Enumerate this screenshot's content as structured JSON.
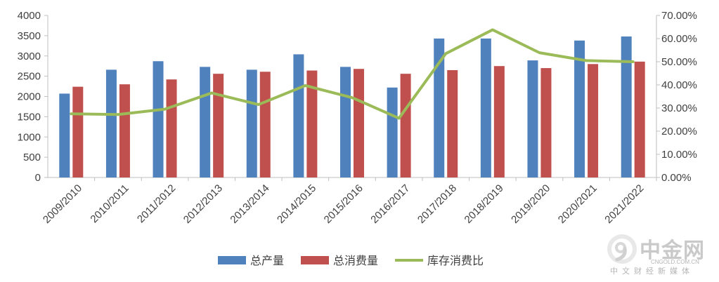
{
  "chart_data": {
    "type": "bar",
    "categories": [
      "2009/2010",
      "2010/2011",
      "2011/2012",
      "2012/2013",
      "2013/2014",
      "2014/2015",
      "2015/2016",
      "2016/2017",
      "2017/2018",
      "2018/2019",
      "2019/2020",
      "2020/2021",
      "2021/2022"
    ],
    "series": [
      {
        "name": "总产量",
        "type": "bar",
        "axis": "left",
        "color": "#4f81bd",
        "values": [
          2070,
          2660,
          2870,
          2730,
          2660,
          3040,
          2730,
          2220,
          3430,
          3430,
          2890,
          3380,
          3480
        ]
      },
      {
        "name": "总消费量",
        "type": "bar",
        "axis": "left",
        "color": "#c0504d",
        "values": [
          2240,
          2300,
          2420,
          2560,
          2610,
          2640,
          2680,
          2560,
          2650,
          2750,
          2700,
          2800,
          2860
        ]
      },
      {
        "name": "库存消费比",
        "type": "line",
        "axis": "right",
        "color": "#9bbb59",
        "values": [
          27.5,
          27.2,
          29.5,
          36.5,
          31.5,
          39.7,
          34.5,
          25.6,
          53.5,
          63.8,
          53.9,
          50.5,
          50.0
        ]
      }
    ],
    "ylim": [
      0,
      4000
    ],
    "yticks": [
      "0",
      "500",
      "1000",
      "1500",
      "2000",
      "2500",
      "3000",
      "3500",
      "4000"
    ],
    "y2lim": [
      0,
      70
    ],
    "y2ticks": [
      "0.00%",
      "10.00%",
      "20.00%",
      "30.00%",
      "40.00%",
      "50.00%",
      "60.00%",
      "70.00%"
    ],
    "grid": false,
    "legend_position": "bottom"
  },
  "watermark": {
    "name": "中金网",
    "url": "CNGOLD.COM.CN",
    "tagline": "中文财经新媒体"
  }
}
